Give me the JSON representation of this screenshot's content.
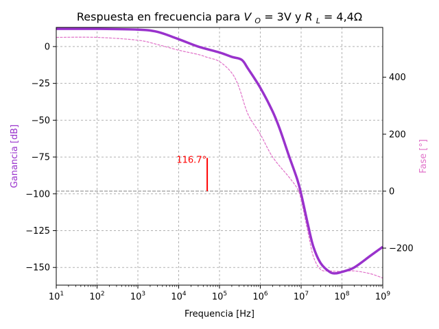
{
  "chart_data": {
    "type": "line",
    "title_prefix": "Respuesta en frecuencia para ",
    "title_math": {
      "v_symbol": "V",
      "v_sub": "O",
      "v_value": " = 3V",
      "joiner": " y ",
      "r_symbol": "R",
      "r_sub": "L",
      "r_value": " = 4,4Ω"
    },
    "xlabel": "Frequencia [Hz]",
    "ylabel_left": "Ganancia [dB]",
    "ylabel_right": "Fase [°]",
    "x_scale": "log",
    "xlim": [
      10,
      1000000000
    ],
    "ylim_left": [
      -162,
      13
    ],
    "ylim_right": [
      -330,
      575
    ],
    "x_ticks": [
      {
        "value": 10,
        "base": "10",
        "exp": "1"
      },
      {
        "value": 100,
        "base": "10",
        "exp": "2"
      },
      {
        "value": 1000,
        "base": "10",
        "exp": "3"
      },
      {
        "value": 10000,
        "base": "10",
        "exp": "4"
      },
      {
        "value": 100000,
        "base": "10",
        "exp": "5"
      },
      {
        "value": 1000000,
        "base": "10",
        "exp": "6"
      },
      {
        "value": 10000000,
        "base": "10",
        "exp": "7"
      },
      {
        "value": 100000000,
        "base": "10",
        "exp": "8"
      },
      {
        "value": 1000000000,
        "base": "10",
        "exp": "9"
      }
    ],
    "y_ticks_left": [
      {
        "value": 0,
        "label": "0"
      },
      {
        "value": -25,
        "label": "−25"
      },
      {
        "value": -50,
        "label": "−50"
      },
      {
        "value": -75,
        "label": "−75"
      },
      {
        "value": -100,
        "label": "−100"
      },
      {
        "value": -125,
        "label": "−125"
      },
      {
        "value": -150,
        "label": "−150"
      }
    ],
    "y_ticks_right": [
      {
        "value": 400,
        "label": "400"
      },
      {
        "value": 200,
        "label": "200"
      },
      {
        "value": 0,
        "label": "0"
      },
      {
        "value": -200,
        "label": "−200"
      }
    ],
    "grid": true,
    "colors": {
      "gain": "#9932cc",
      "phase": "#e070c8",
      "annotation": "#ff0000",
      "reference": "#808080",
      "grid": "#b0b0b0"
    },
    "series": [
      {
        "axis": "left",
        "style": "solid",
        "x": [
          10,
          100,
          1000,
          3000,
          10000,
          30000,
          100000,
          200000,
          350000,
          500000,
          1000000,
          2000000,
          3000000,
          5000000,
          8000000,
          10000000,
          15000000,
          20000000,
          30000000,
          50000000,
          70000000,
          100000000,
          200000000,
          500000000,
          1000000000
        ],
        "y": [
          12,
          12,
          11.5,
          10,
          5,
          0,
          -4,
          -7,
          -9,
          -15,
          -28,
          -44,
          -56,
          -74,
          -90,
          -100,
          -122,
          -136,
          -147,
          -153,
          -154,
          -153,
          -150,
          -142,
          -136
        ]
      },
      {
        "axis": "right",
        "style": "dashed",
        "x": [
          10,
          100,
          1000,
          3000,
          10000,
          30000,
          50000,
          100000,
          200000,
          300000,
          500000,
          1000000,
          2000000,
          5000000,
          8000000,
          10000000,
          15000000,
          20000000,
          30000000,
          50000000,
          100000000,
          200000000,
          500000000,
          1000000000
        ],
        "y": [
          540,
          540,
          530,
          515,
          495,
          480,
          470,
          455,
          415,
          365,
          270,
          200,
          120,
          50,
          10,
          -30,
          -150,
          -230,
          -275,
          -280,
          -282,
          -280,
          -290,
          -305
        ]
      }
    ],
    "annotation": {
      "label": "116.7°",
      "x": 50000,
      "y_from": 0,
      "y_to": 116.7
    },
    "reference_line": {
      "axis": "right",
      "y": 0
    }
  }
}
